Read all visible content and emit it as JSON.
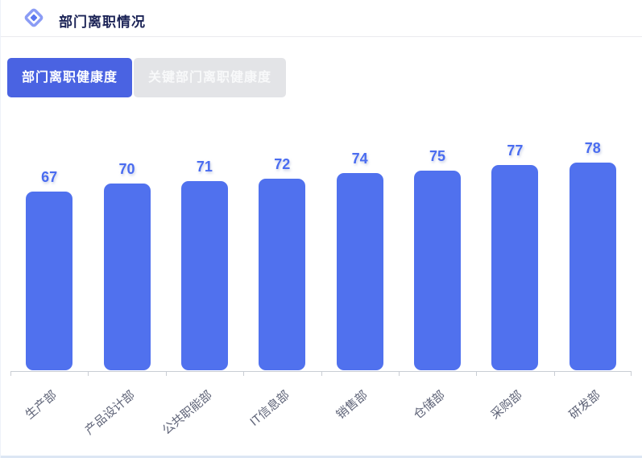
{
  "panel": {
    "title": "部门离职情况",
    "icon": "diamond-icon"
  },
  "tabs": [
    {
      "label": "部门离职健康度",
      "active": true
    },
    {
      "label": "关键部门离职健康度",
      "active": false
    }
  ],
  "colors": {
    "accent_blue": "#4a63e2",
    "bar_blue": "#5071ee",
    "value_label_blue": "#4a6cf0",
    "title_navy": "#1b2356",
    "inactive_tab_bg": "#e3e4e7",
    "axis_gray": "#c9cdd4"
  },
  "chart_data": {
    "type": "bar",
    "categories": [
      "生产部",
      "产品设计部",
      "公共职能部",
      "IT信息部",
      "销售部",
      "仓储部",
      "采购部",
      "研发部"
    ],
    "values": [
      67,
      70,
      71,
      72,
      74,
      75,
      77,
      78
    ],
    "title": "",
    "xlabel": "",
    "ylabel": "",
    "grid": false,
    "legend": "none",
    "x_label_rotation": -40,
    "bar_color": "#5071ee",
    "value_labels_shown": true
  }
}
